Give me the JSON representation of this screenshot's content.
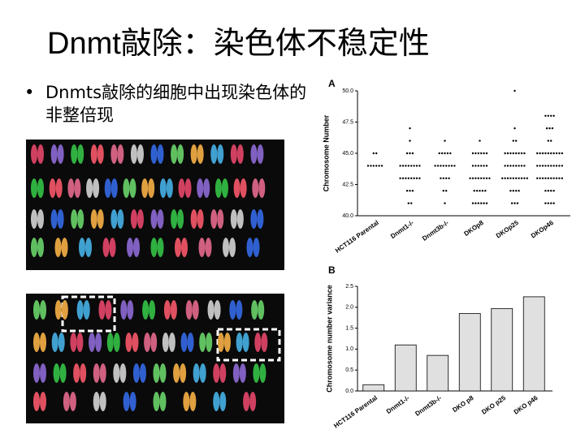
{
  "title": "Dnmt敲除：染色体不稳定性",
  "bullet": "Dnmts敲除的细胞中出现染色体的非整倍现",
  "chart_data": [
    {
      "type": "dotplot",
      "panel": "A",
      "ylabel": "Chromosome Number",
      "categories": [
        "HCT116 Parental",
        "Dnmt1-/-",
        "Dnmt3b-/-",
        "DKOp8",
        "DKOp25",
        "DKOp46"
      ],
      "values": [
        [
          45,
          45,
          44,
          44,
          44,
          44,
          44,
          44
        ],
        [
          47,
          46,
          45,
          45,
          45,
          44,
          44,
          44,
          44,
          44,
          44,
          44,
          44,
          43,
          43,
          43,
          43,
          43,
          43,
          43,
          43,
          42,
          42,
          42,
          41,
          41
        ],
        [
          46,
          45,
          45,
          45,
          45,
          45,
          44,
          44,
          44,
          44,
          44,
          44,
          44,
          44,
          43,
          43,
          43,
          43,
          42,
          42,
          41
        ],
        [
          46,
          45,
          45,
          45,
          45,
          45,
          45,
          44,
          44,
          44,
          44,
          44,
          44,
          43,
          43,
          43,
          43,
          43,
          43,
          43,
          43,
          42,
          42,
          42,
          42,
          42,
          41,
          41,
          41,
          41,
          41,
          41
        ],
        [
          50,
          47,
          46,
          46,
          45,
          45,
          45,
          45,
          45,
          45,
          45,
          45,
          44,
          44,
          44,
          44,
          44,
          44,
          44,
          44,
          43,
          43,
          43,
          43,
          43,
          43,
          43,
          43,
          43,
          43,
          42,
          42,
          42,
          42,
          41,
          41,
          41
        ],
        [
          48,
          48,
          48,
          48,
          47,
          47,
          47,
          46,
          46,
          45,
          45,
          45,
          45,
          45,
          45,
          45,
          45,
          45,
          45,
          44,
          44,
          44,
          44,
          44,
          44,
          44,
          44,
          44,
          44,
          43,
          43,
          43,
          43,
          43,
          43,
          43,
          43,
          43,
          43,
          42,
          42,
          42,
          42,
          41,
          41,
          41,
          41
        ]
      ],
      "color": "#000000",
      "ylim": [
        40,
        50
      ],
      "yticks": [
        {
          "value": 40,
          "label": "40.0"
        },
        42.5,
        {
          "value": 45,
          "label": "45.0"
        },
        47.5,
        {
          "value": 50,
          "label": "50.0"
        }
      ]
    },
    {
      "type": "bar",
      "panel": "B",
      "ylabel": "Chromosome number variance",
      "categories": [
        "HCT116 Parental",
        "Dnmt1-/-",
        "Dnmt3b-/-",
        "DKO p8",
        "DKO p25",
        "DKO p46"
      ],
      "values": [
        0.15,
        1.1,
        0.85,
        1.85,
        1.97,
        2.25
      ],
      "color": "#e0e0e0",
      "ylim": [
        0,
        2.5
      ],
      "yticks": [
        {
          "value": 0,
          "label": "0.0"
        },
        0.5,
        {
          "value": 1,
          "label": "1.0"
        },
        1.5,
        {
          "value": 2,
          "label": "2.0"
        },
        2.5
      ]
    }
  ]
}
